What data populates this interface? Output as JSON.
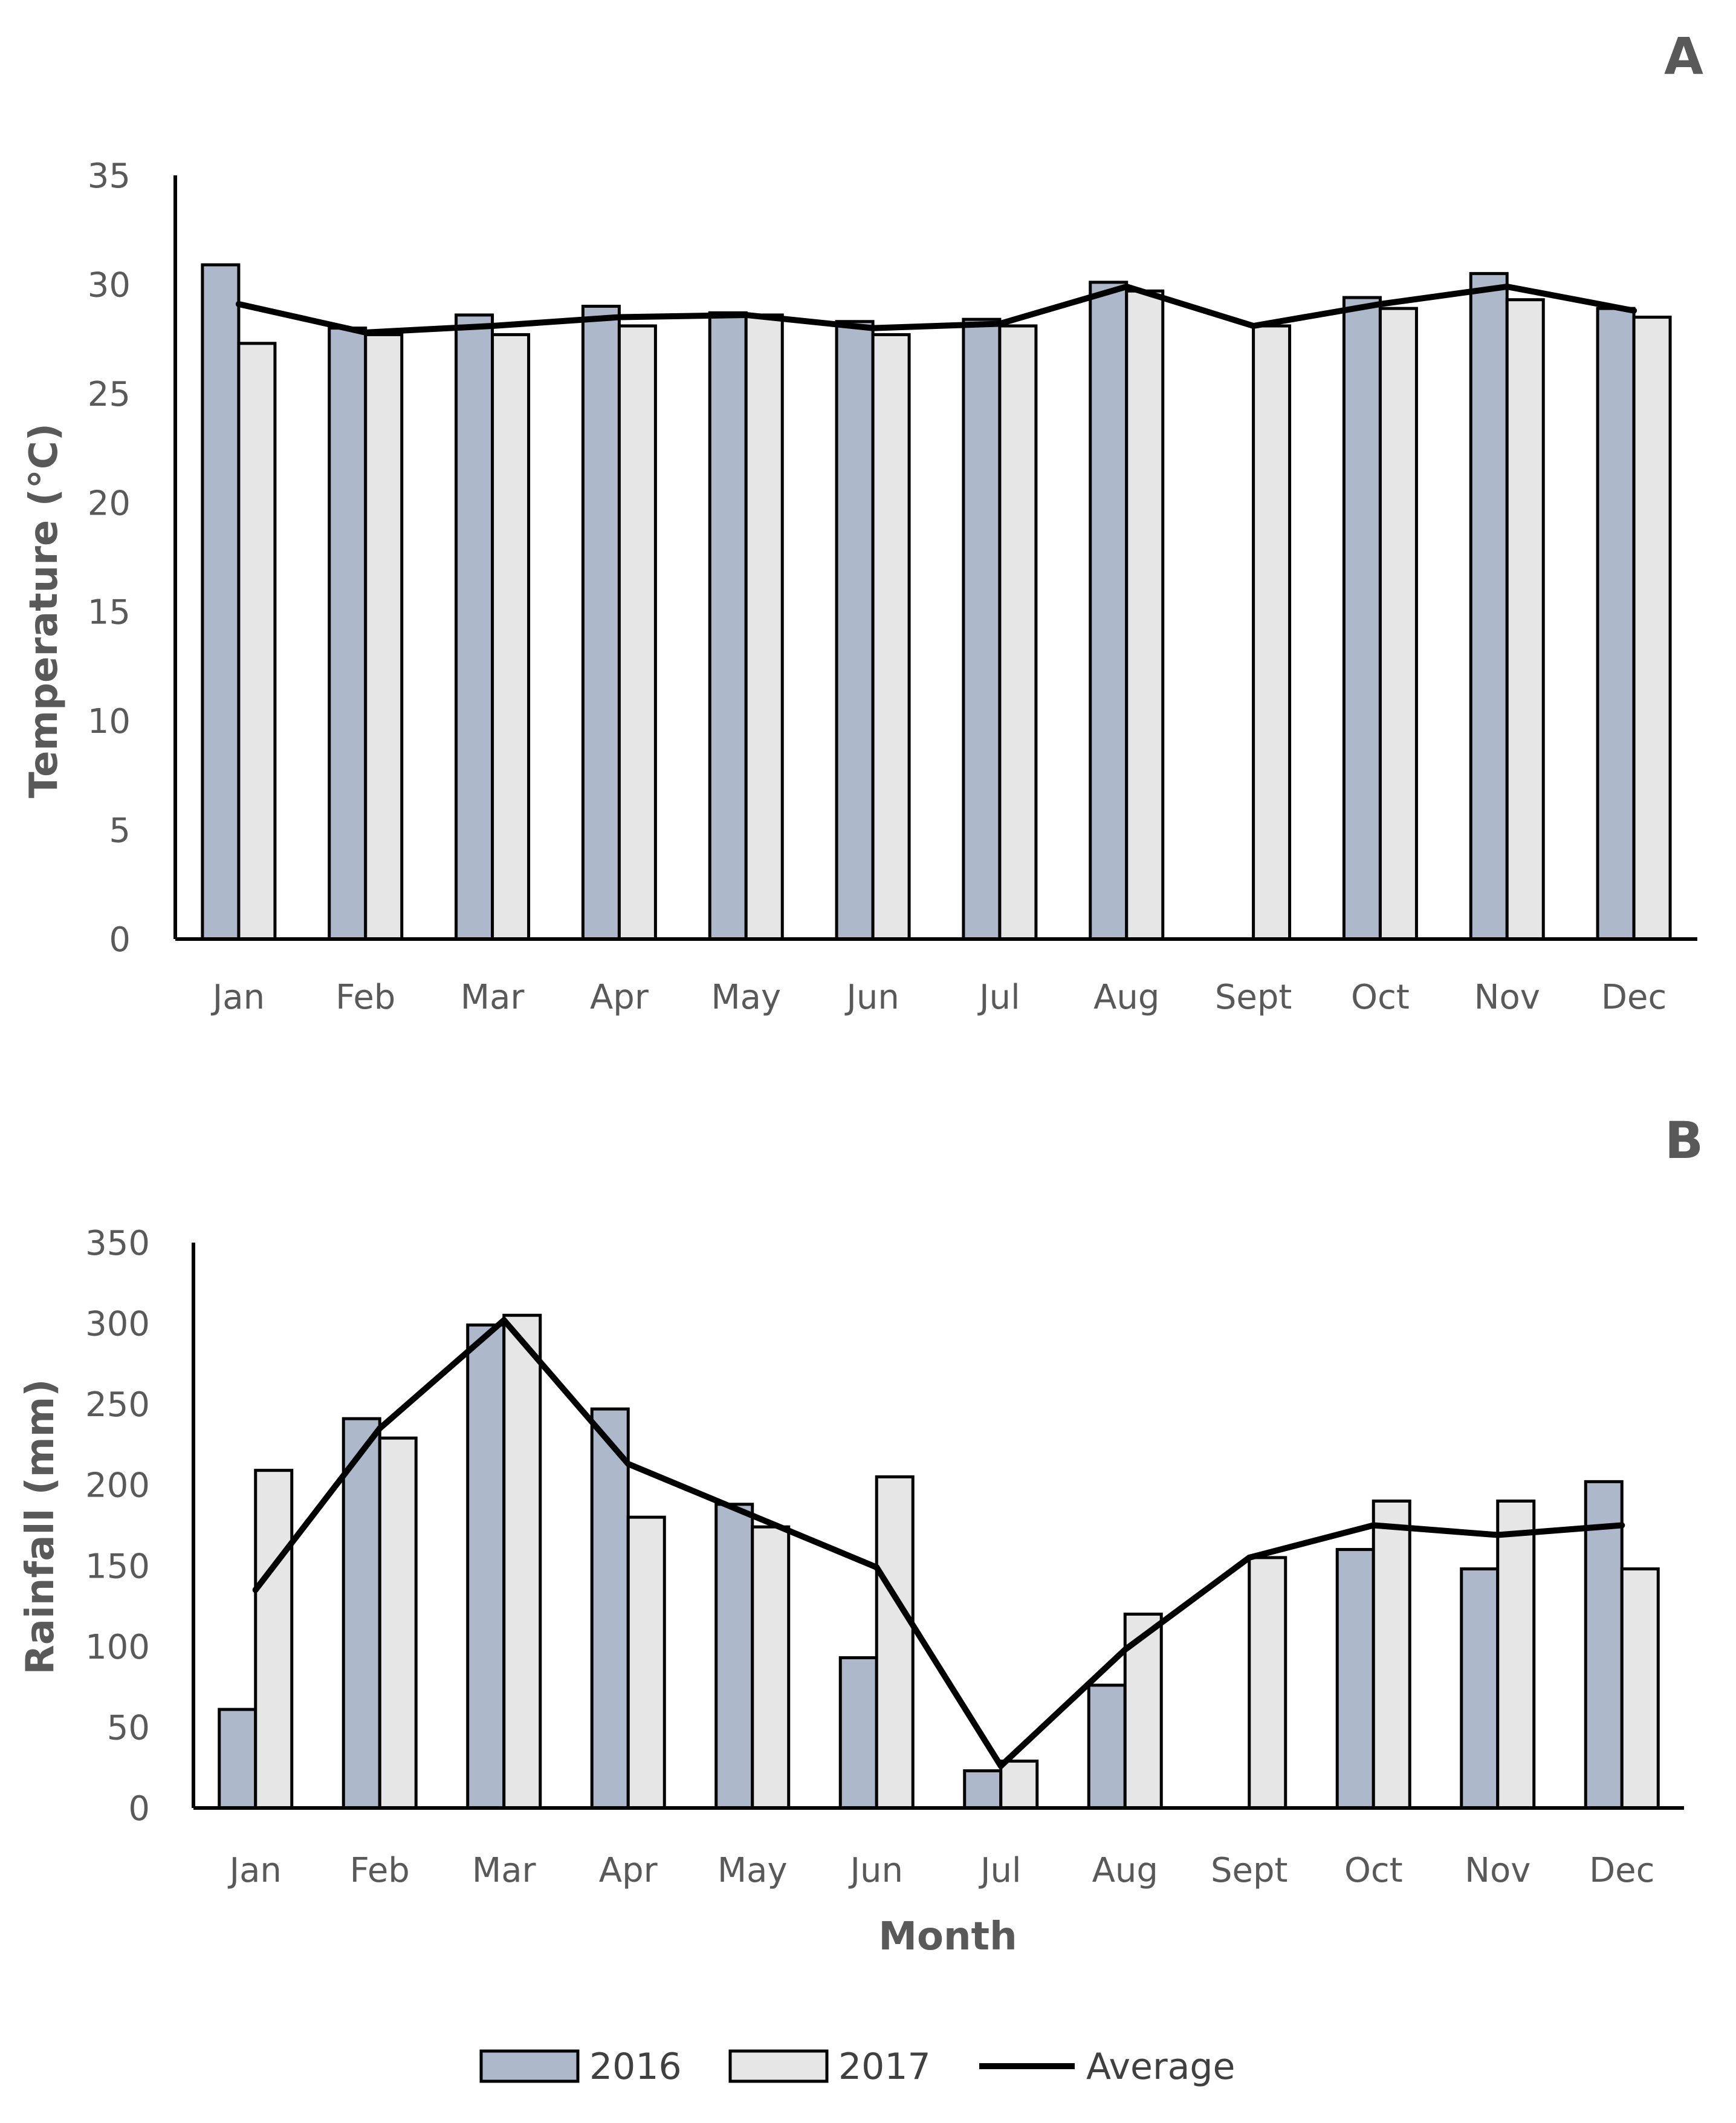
{
  "chart_data": [
    {
      "type": "bar",
      "panel": "A",
      "title": "",
      "xlabel": "",
      "ylabel": "Temperature (°C)",
      "ylim": [
        0,
        35
      ],
      "yticks": [
        0,
        5,
        10,
        15,
        20,
        25,
        30,
        35
      ],
      "grid": false,
      "categories": [
        "Jan",
        "Feb",
        "Mar",
        "Apr",
        "May",
        "Jun",
        "Jul",
        "Aug",
        "Sept",
        "Oct",
        "Nov",
        "Dec"
      ],
      "series": [
        {
          "name": "2016",
          "kind": "bar",
          "color": "#adb9ca",
          "values": [
            30.9,
            28.0,
            28.6,
            29.0,
            28.7,
            28.3,
            28.4,
            30.1,
            null,
            29.4,
            30.5,
            28.9
          ]
        },
        {
          "name": "2017",
          "kind": "bar",
          "color": "#e7e6e6",
          "values": [
            27.3,
            27.7,
            27.7,
            28.1,
            28.6,
            27.7,
            28.1,
            29.7,
            28.1,
            28.9,
            29.3,
            28.5
          ]
        },
        {
          "name": "Average",
          "kind": "line",
          "color": "#000000",
          "values": [
            29.1,
            27.8,
            28.1,
            28.5,
            28.6,
            28.0,
            28.2,
            29.9,
            28.1,
            29.1,
            29.9,
            28.8
          ]
        }
      ]
    },
    {
      "type": "bar",
      "panel": "B",
      "title": "",
      "xlabel": "Month",
      "ylabel": "Rainfall (mm)",
      "ylim": [
        0,
        350
      ],
      "yticks": [
        0,
        50,
        100,
        150,
        200,
        250,
        300,
        350
      ],
      "grid": false,
      "categories": [
        "Jan",
        "Feb",
        "Mar",
        "Apr",
        "May",
        "Jun",
        "Jul",
        "Aug",
        "Sept",
        "Oct",
        "Nov",
        "Dec"
      ],
      "series": [
        {
          "name": "2016",
          "kind": "bar",
          "color": "#adb9ca",
          "values": [
            61,
            241,
            299,
            247,
            188,
            93,
            23,
            76,
            null,
            160,
            148,
            202
          ]
        },
        {
          "name": "2017",
          "kind": "bar",
          "color": "#e7e6e6",
          "values": [
            209,
            229,
            305,
            180,
            174,
            205,
            29,
            120,
            155,
            190,
            190,
            148
          ]
        },
        {
          "name": "Average",
          "kind": "line",
          "color": "#000000",
          "values": [
            135,
            235,
            302,
            213,
            181,
            149,
            26,
            98,
            155,
            175,
            169,
            175
          ]
        }
      ]
    }
  ],
  "legend": {
    "placement": "bottom-center",
    "items": [
      {
        "label": "2016",
        "color": "#adb9ca",
        "kind": "bar"
      },
      {
        "label": "2017",
        "color": "#e7e6e6",
        "kind": "bar"
      },
      {
        "label": "Average",
        "color": "#000000",
        "kind": "line"
      }
    ]
  }
}
